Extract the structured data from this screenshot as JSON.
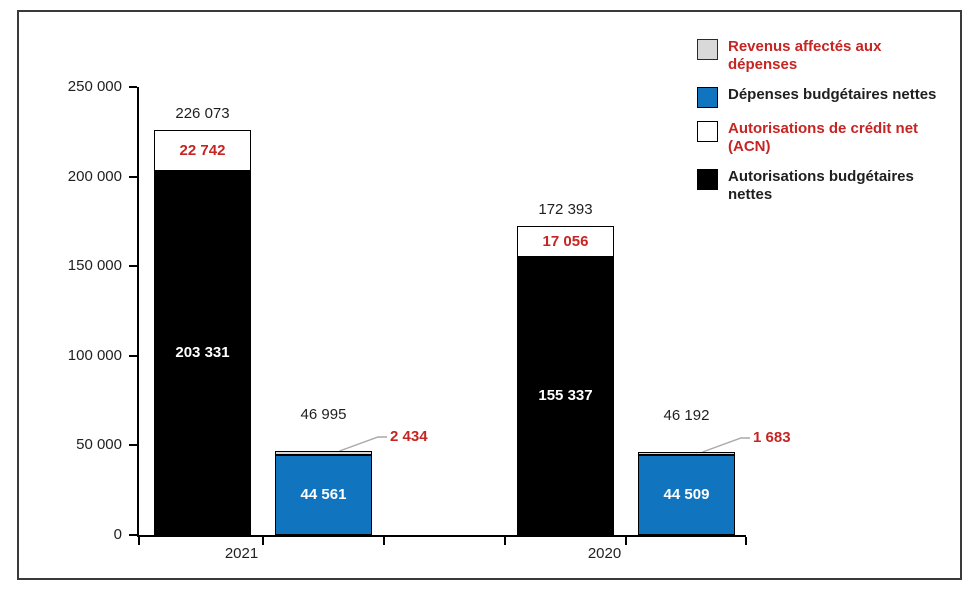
{
  "figure": {
    "background": "#FFFFFF",
    "border_color": "#3A3A3A"
  },
  "colors": {
    "black_series": "#000000",
    "blue_series": "#1174BF",
    "white_series": "#FFFFFF",
    "gray_series": "#D9D9D9",
    "red_text": "#C52523",
    "dark_text": "#1F1F1F",
    "leader_line": "#A9A9A9"
  },
  "legend": {
    "items": [
      {
        "name": "revenus-affectes-aux-depenses",
        "label": "Revenus affectés aux dépenses",
        "swatch_color": "#D9D9D9",
        "swatch_border": "#2B2B2B",
        "text_color": "#C52523"
      },
      {
        "name": "depenses-budgetaires-nettes",
        "label": "Dépenses budgétaires nettes",
        "swatch_color": "#1174BF",
        "swatch_border": "#000000",
        "text_color": "#1F1F1F"
      },
      {
        "name": "autorisations-de-credit-net",
        "label": "Autorisations de crédit net (ACN)",
        "swatch_color": "#FFFFFF",
        "swatch_border": "#000000",
        "text_color": "#C52523"
      },
      {
        "name": "autorisations-budgetaires-nettes",
        "label": "Autorisations budgétaires nettes",
        "swatch_color": "#000000",
        "swatch_border": "#000000",
        "text_color": "#1F1F1F"
      }
    ]
  },
  "chart_data": {
    "type": "bar",
    "stacked": true,
    "title": "",
    "xlabel": "",
    "ylabel": "",
    "grid": false,
    "legend_position": "top-right",
    "categories": [
      "2021",
      "2020"
    ],
    "ylim": [
      0,
      250000
    ],
    "yticks": [
      0,
      50000,
      100000,
      150000,
      200000,
      250000
    ],
    "ytick_labels": [
      "0",
      "50 000",
      "100 000",
      "150 000",
      "200 000",
      "250 000"
    ],
    "stacks": [
      {
        "id": "autorisations",
        "totals": [
          226073,
          172393
        ],
        "total_labels": [
          "226 073",
          "172 393"
        ],
        "segments": [
          {
            "series": "Autorisations budgétaires nettes",
            "color": "#000000",
            "values": [
              203331,
              155337
            ],
            "value_labels": [
              "203 331",
              "155 337"
            ],
            "label_color": "#FFFFFF",
            "callout": false
          },
          {
            "series": "Autorisations de crédit net (ACN)",
            "color": "#FFFFFF",
            "values": [
              22742,
              17056
            ],
            "value_labels": [
              "22 742",
              "17 056"
            ],
            "label_color": "#C52523",
            "callout": false
          }
        ]
      },
      {
        "id": "depenses",
        "totals": [
          46995,
          46192
        ],
        "total_labels": [
          "46 995",
          "46 192"
        ],
        "segments": [
          {
            "series": "Dépenses budgétaires nettes",
            "color": "#1174BF",
            "values": [
              44561,
              44509
            ],
            "value_labels": [
              "44 561",
              "44 509"
            ],
            "label_color": "#FFFFFF",
            "callout": false
          },
          {
            "series": "Revenus affectés aux dépenses",
            "color": "#D9D9D9",
            "values": [
              2434,
              1683
            ],
            "value_labels": [
              "2 434",
              "1 683"
            ],
            "label_color": "#C52523",
            "callout": true
          }
        ]
      }
    ]
  }
}
